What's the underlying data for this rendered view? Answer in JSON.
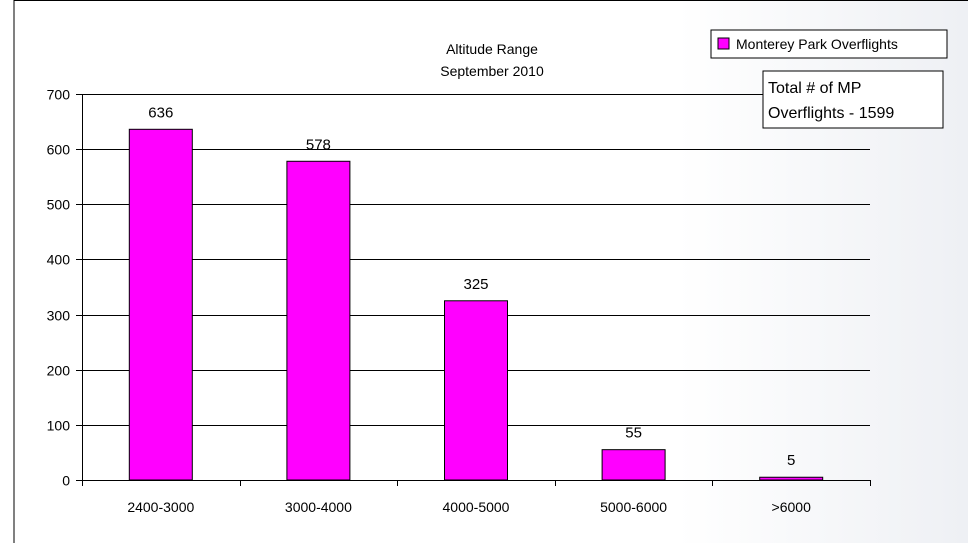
{
  "chart_data": {
    "type": "bar",
    "title": "Altitude Range",
    "subtitle": "September 2010",
    "categories": [
      "2400-3000",
      "3000-4000",
      "4000-5000",
      "5000-6000",
      ">6000"
    ],
    "series": [
      {
        "name": "Monterey Park Overflights",
        "values": [
          636,
          578,
          325,
          55,
          5
        ]
      }
    ],
    "data_labels": [
      "636",
      "578",
      "325",
      "55",
      "5"
    ],
    "ylim": [
      0,
      700
    ],
    "yticks": [
      0,
      100,
      200,
      300,
      400,
      500,
      600,
      700
    ],
    "xlabel": "",
    "ylabel": "",
    "grid": true,
    "legend_position": "top-right",
    "bar_color": "#ff00ff",
    "annotation": [
      "Total # of MP",
      "Overflights - 1599"
    ]
  }
}
